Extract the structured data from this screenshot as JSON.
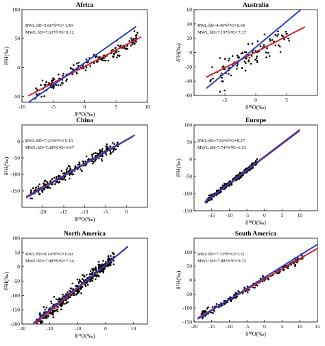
{
  "figure": {
    "ylabel": "δ²H(‰)",
    "xlabel": "δ¹⁸O(‰)"
  },
  "colors": {
    "rwl": "#d0202a",
    "mwl": "#2a3cc8",
    "points": "#000000"
  },
  "chart_data": [
    {
      "type": "scatter",
      "title": "Africa",
      "xlabel": "δ¹⁸O(‰)",
      "ylabel": "δ²H(‰)",
      "xlim": [
        -10,
        10
      ],
      "ylim": [
        -60,
        100
      ],
      "xticks": [
        -10,
        -5,
        0,
        5,
        10
      ],
      "yticks": [
        -50,
        0,
        50,
        100
      ],
      "grid": false,
      "annotations": [
        "RWL:δD=5.66*δ¹⁸O+1.90",
        "MWL:δD=7.63*δ¹⁸O+8.12"
      ],
      "lines": [
        {
          "name": "RWL",
          "slope": 5.66,
          "intercept": 1.9,
          "color": "#d0202a",
          "x_range": [
            -9,
            9
          ]
        },
        {
          "name": "MWL",
          "slope": 7.63,
          "intercept": 8.12,
          "color": "#2a3cc8",
          "x_range": [
            -9,
            8.2
          ]
        }
      ],
      "scatter": {
        "x_range": [
          -8,
          8.5
        ],
        "n": 170,
        "slope": 5.66,
        "intercept": 1.9,
        "noise": 6
      }
    },
    {
      "type": "scatter",
      "title": "Australia",
      "xlabel": "δ¹⁸O(‰)",
      "ylabel": "δ²H(‰)",
      "xlim": [
        -10,
        10
      ],
      "ylim": [
        -60,
        60
      ],
      "xticks": [
        -5,
        0,
        5
      ],
      "yticks": [
        -60,
        -40,
        -20,
        0,
        20,
        40,
        60
      ],
      "grid": false,
      "annotations": [
        "RWL:δD=4.40*δ¹⁸O+0.69",
        "MWL:δD=7.19*δ¹⁸O+7.37"
      ],
      "lines": [
        {
          "name": "RWL",
          "slope": 4.4,
          "intercept": 0.69,
          "color": "#d0202a",
          "x_range": [
            -8,
            8
          ]
        },
        {
          "name": "MWL",
          "slope": 7.19,
          "intercept": 7.37,
          "color": "#2a3cc8",
          "x_range": [
            -8,
            7.3
          ]
        }
      ],
      "scatter": {
        "x_range": [
          -7.5,
          5.5
        ],
        "n": 110,
        "slope": 4.4,
        "intercept": 0.69,
        "noise": 9
      }
    },
    {
      "type": "scatter",
      "title": "China",
      "xlabel": "δ¹⁸O(‰)",
      "ylabel": "δ²H(‰)",
      "xlim": [
        -25,
        5
      ],
      "ylim": [
        -200,
        50
      ],
      "xticks": [
        -20,
        -15,
        -10,
        -5,
        0
      ],
      "yticks": [
        -150,
        -100,
        -50,
        0
      ],
      "grid": false,
      "annotations": [
        "RWL:δD=7.22*δ¹⁸O+5.10",
        "MWL:δD=7.28*δ¹⁸O+3.97"
      ],
      "lines": [
        {
          "name": "RWL",
          "slope": 7.22,
          "intercept": 5.1,
          "color": "#d0202a",
          "x_range": [
            -24,
            2
          ]
        },
        {
          "name": "MWL",
          "slope": 7.28,
          "intercept": 3.97,
          "color": "#2a3cc8",
          "x_range": [
            -24,
            1.5
          ]
        }
      ],
      "scatter": {
        "x_range": [
          -23,
          -2
        ],
        "n": 240,
        "slope": 7.22,
        "intercept": 5.1,
        "noise": 8
      }
    },
    {
      "type": "scatter",
      "title": "Europe",
      "xlabel": "δ¹⁸O(‰)",
      "ylabel": "δ²H(‰)",
      "xlim": [
        -20,
        15
      ],
      "ylim": [
        -150,
        100
      ],
      "xticks": [
        -15,
        -10,
        -5,
        0,
        5,
        10
      ],
      "yticks": [
        -150,
        -100,
        -50,
        0,
        50,
        100
      ],
      "grid": false,
      "annotations": [
        "RWL:δD=7.82*δ¹⁸O+8.27",
        "MWL:δD=7.74*δ¹⁸O+6.13"
      ],
      "lines": [
        {
          "name": "RWL",
          "slope": 7.82,
          "intercept": 8.27,
          "color": "#d0202a",
          "x_range": [
            -17,
            10
          ]
        },
        {
          "name": "MWL",
          "slope": 7.74,
          "intercept": 6.13,
          "color": "#2a3cc8",
          "x_range": [
            -17,
            10
          ]
        }
      ],
      "scatter": {
        "x_range": [
          -16.5,
          -2
        ],
        "n": 260,
        "slope": 7.82,
        "intercept": 8.27,
        "noise": 4
      }
    },
    {
      "type": "scatter",
      "title": "North America",
      "xlabel": "δ¹⁸O(‰)",
      "ylabel": "δ²H(‰)",
      "xlim": [
        -30,
        15
      ],
      "ylim": [
        -200,
        100
      ],
      "xticks": [
        -30,
        -20,
        -10,
        0,
        10
      ],
      "yticks": [
        -200,
        -150,
        -100,
        -50,
        0,
        50,
        100
      ],
      "grid": false,
      "annotations": [
        "RWL:δD=8.14*δ¹⁸O+6.60",
        "MWL:δD=7.88*δ¹⁸O+7.24"
      ],
      "lines": [
        {
          "name": "RWL",
          "slope": 8.14,
          "intercept": 6.6,
          "color": "#d0202a",
          "x_range": [
            -26,
            8
          ]
        },
        {
          "name": "MWL",
          "slope": 7.88,
          "intercept": 7.24,
          "color": "#2a3cc8",
          "x_range": [
            -26,
            8
          ]
        }
      ],
      "scatter": {
        "x_range": [
          -25,
          3
        ],
        "n": 420,
        "slope": 8.14,
        "intercept": 6.6,
        "noise": 11
      }
    },
    {
      "type": "scatter",
      "title": "South America",
      "xlabel": "δ¹⁸O(‰)",
      "ylabel": "δ²H(‰)",
      "xlim": [
        -20,
        15
      ],
      "ylim": [
        -150,
        150
      ],
      "xticks": [
        -20,
        -15,
        -10,
        -5,
        0,
        5,
        10,
        15
      ],
      "yticks": [
        -150,
        -100,
        -50,
        0,
        50,
        100
      ],
      "grid": false,
      "annotations": [
        "RWL:δD=7.33*δ¹⁸O+3.51",
        "MWL:δD=7.88*δ¹⁸O+9.72"
      ],
      "lines": [
        {
          "name": "RWL",
          "slope": 7.33,
          "intercept": 3.51,
          "color": "#d0202a",
          "x_range": [
            -19,
            15
          ]
        },
        {
          "name": "MWL",
          "slope": 7.88,
          "intercept": 9.72,
          "color": "#2a3cc8",
          "x_range": [
            -19,
            15
          ]
        }
      ],
      "scatter": {
        "x_range": [
          -18,
          11
        ],
        "n": 190,
        "slope": 7.33,
        "intercept": 3.51,
        "noise": 6
      }
    }
  ]
}
